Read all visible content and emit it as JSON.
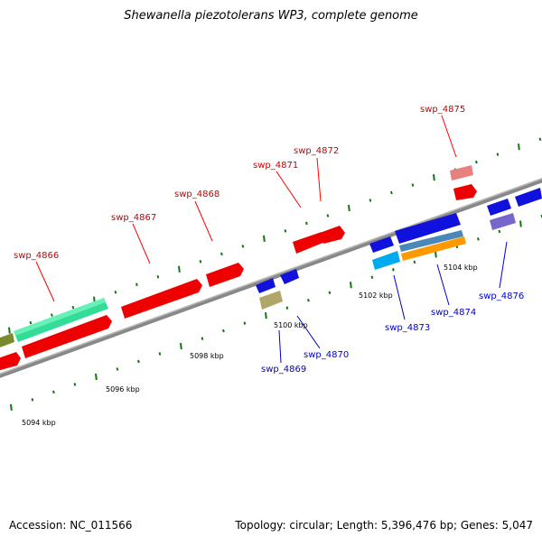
{
  "title": "Shewanella piezotolerans WP3, complete genome",
  "footer": {
    "accession": "Accession: NC_011566",
    "summary": "Topology: circular; Length: 5,396,476 bp; Genes: 5,047"
  },
  "scale_labels": [
    "5094 kbp",
    "5096 kbp",
    "5098 kbp",
    "5100 kbp",
    "5102 kbp",
    "5104 kbp"
  ],
  "genes_top": [
    {
      "id": "g4866",
      "label": "swp_4866",
      "color": "#cc0000"
    },
    {
      "id": "g4867",
      "label": "swp_4867",
      "color": "#cc0000"
    },
    {
      "id": "g4868",
      "label": "swp_4868",
      "color": "#cc0000"
    },
    {
      "id": "g4871",
      "label": "swp_4871",
      "color": "#cc0000"
    },
    {
      "id": "g4872",
      "label": "swp_4872",
      "color": "#cc0000"
    },
    {
      "id": "g4875",
      "label": "swp_4875",
      "color": "#cc0000"
    }
  ],
  "genes_bottom": [
    {
      "id": "g4869",
      "label": "swp_4869",
      "color": "#0000cc"
    },
    {
      "id": "g4870",
      "label": "swp_4870",
      "color": "#0000cc"
    },
    {
      "id": "g4873",
      "label": "swp_4873",
      "color": "#0000cc"
    },
    {
      "id": "g4874",
      "label": "swp_4874",
      "color": "#0000cc"
    },
    {
      "id": "g4876",
      "label": "swp_4876",
      "color": "#0000cc"
    }
  ]
}
